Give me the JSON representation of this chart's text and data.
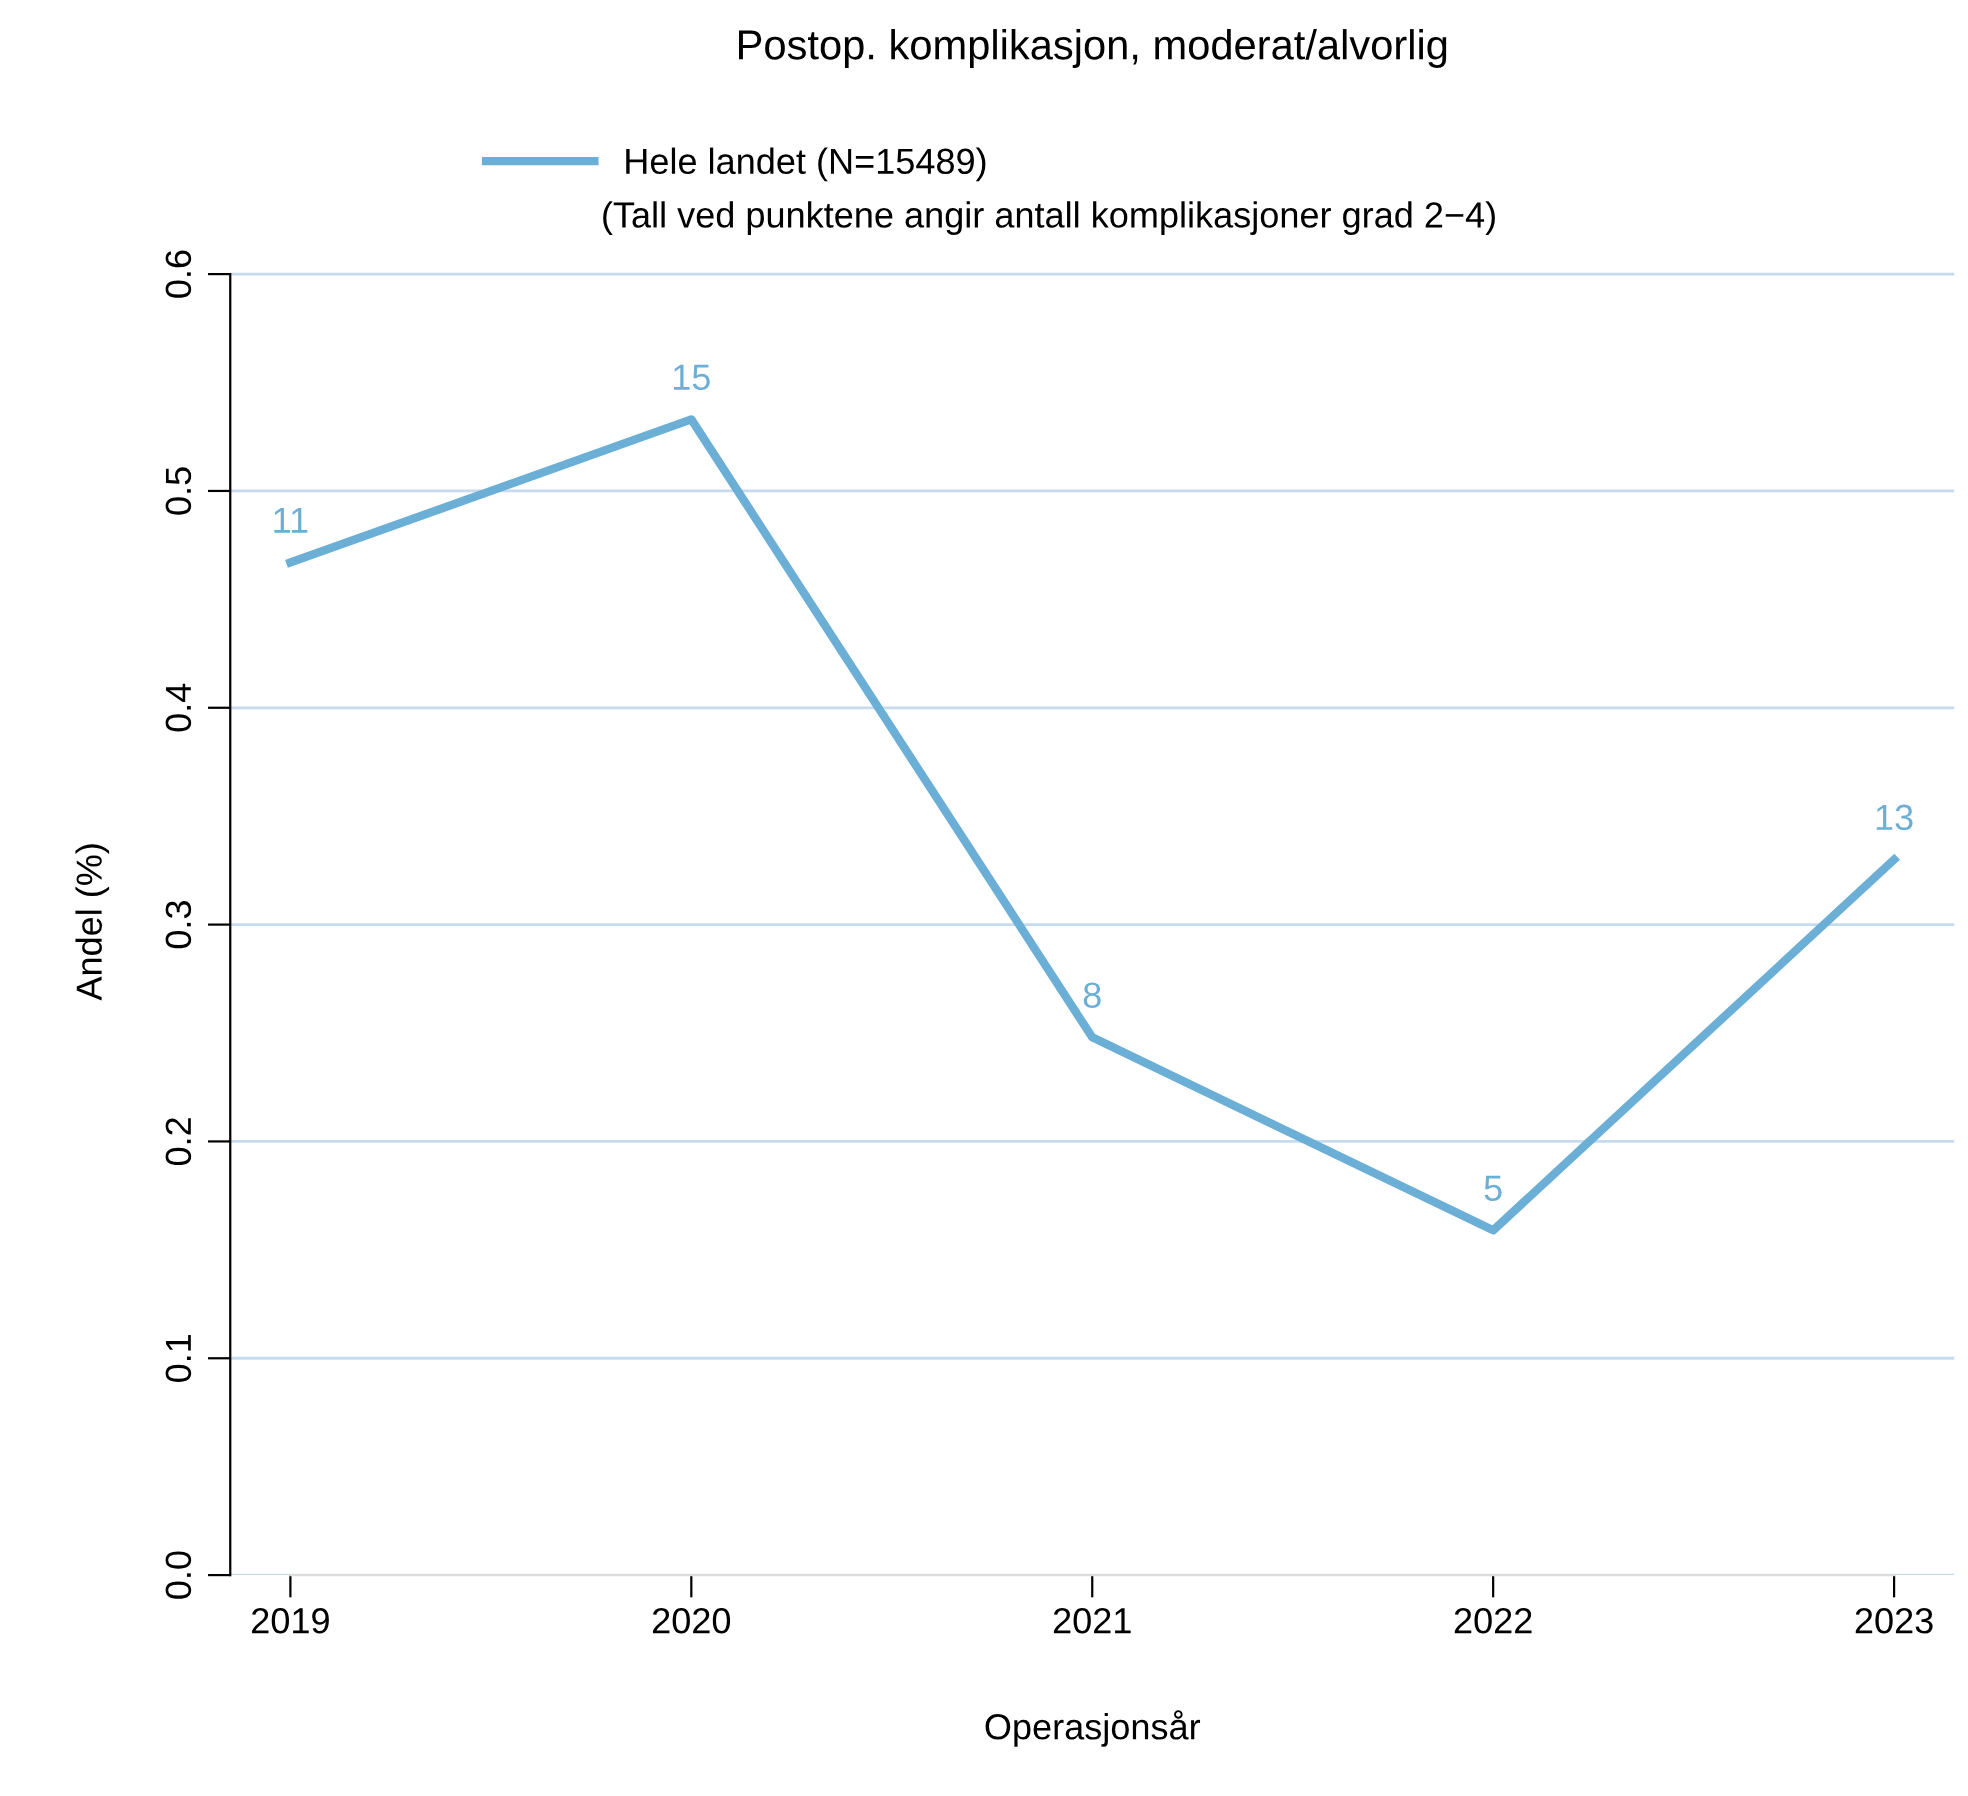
{
  "chart_data": {
    "type": "line",
    "title": "Postop. komplikasjon, moderat/alvorlig",
    "xlabel": "Operasjonsår",
    "ylabel": "Andel (%)",
    "categories": [
      "2019",
      "2020",
      "2021",
      "2022",
      "2023"
    ],
    "series": [
      {
        "name": "Hele landet (N=15489)",
        "color": "#6baed6",
        "values": [
          0.467,
          0.533,
          0.248,
          0.159,
          0.33
        ]
      }
    ],
    "annotations": [
      "(Tall ved punktene angir antall komplikasjoner grad 2−4)",
      {
        "text": "11",
        "x": "2019",
        "y": 0.467
      },
      {
        "text": "15",
        "x": "2020",
        "y": 0.533
      },
      {
        "text": "8",
        "x": "2021",
        "y": 0.248
      },
      {
        "text": "5",
        "x": "2022",
        "y": 0.159
      },
      {
        "text": "13",
        "x": "2023",
        "y": 0.33
      }
    ],
    "ylim": [
      0,
      0.6
    ],
    "yticks": [
      {
        "value": 0,
        "label": "0.0"
      },
      0.1,
      0.2,
      0.3,
      0.4,
      0.5,
      0.6
    ],
    "grid": "y",
    "legend": "top",
    "marker": "none",
    "line_style": "solid"
  }
}
